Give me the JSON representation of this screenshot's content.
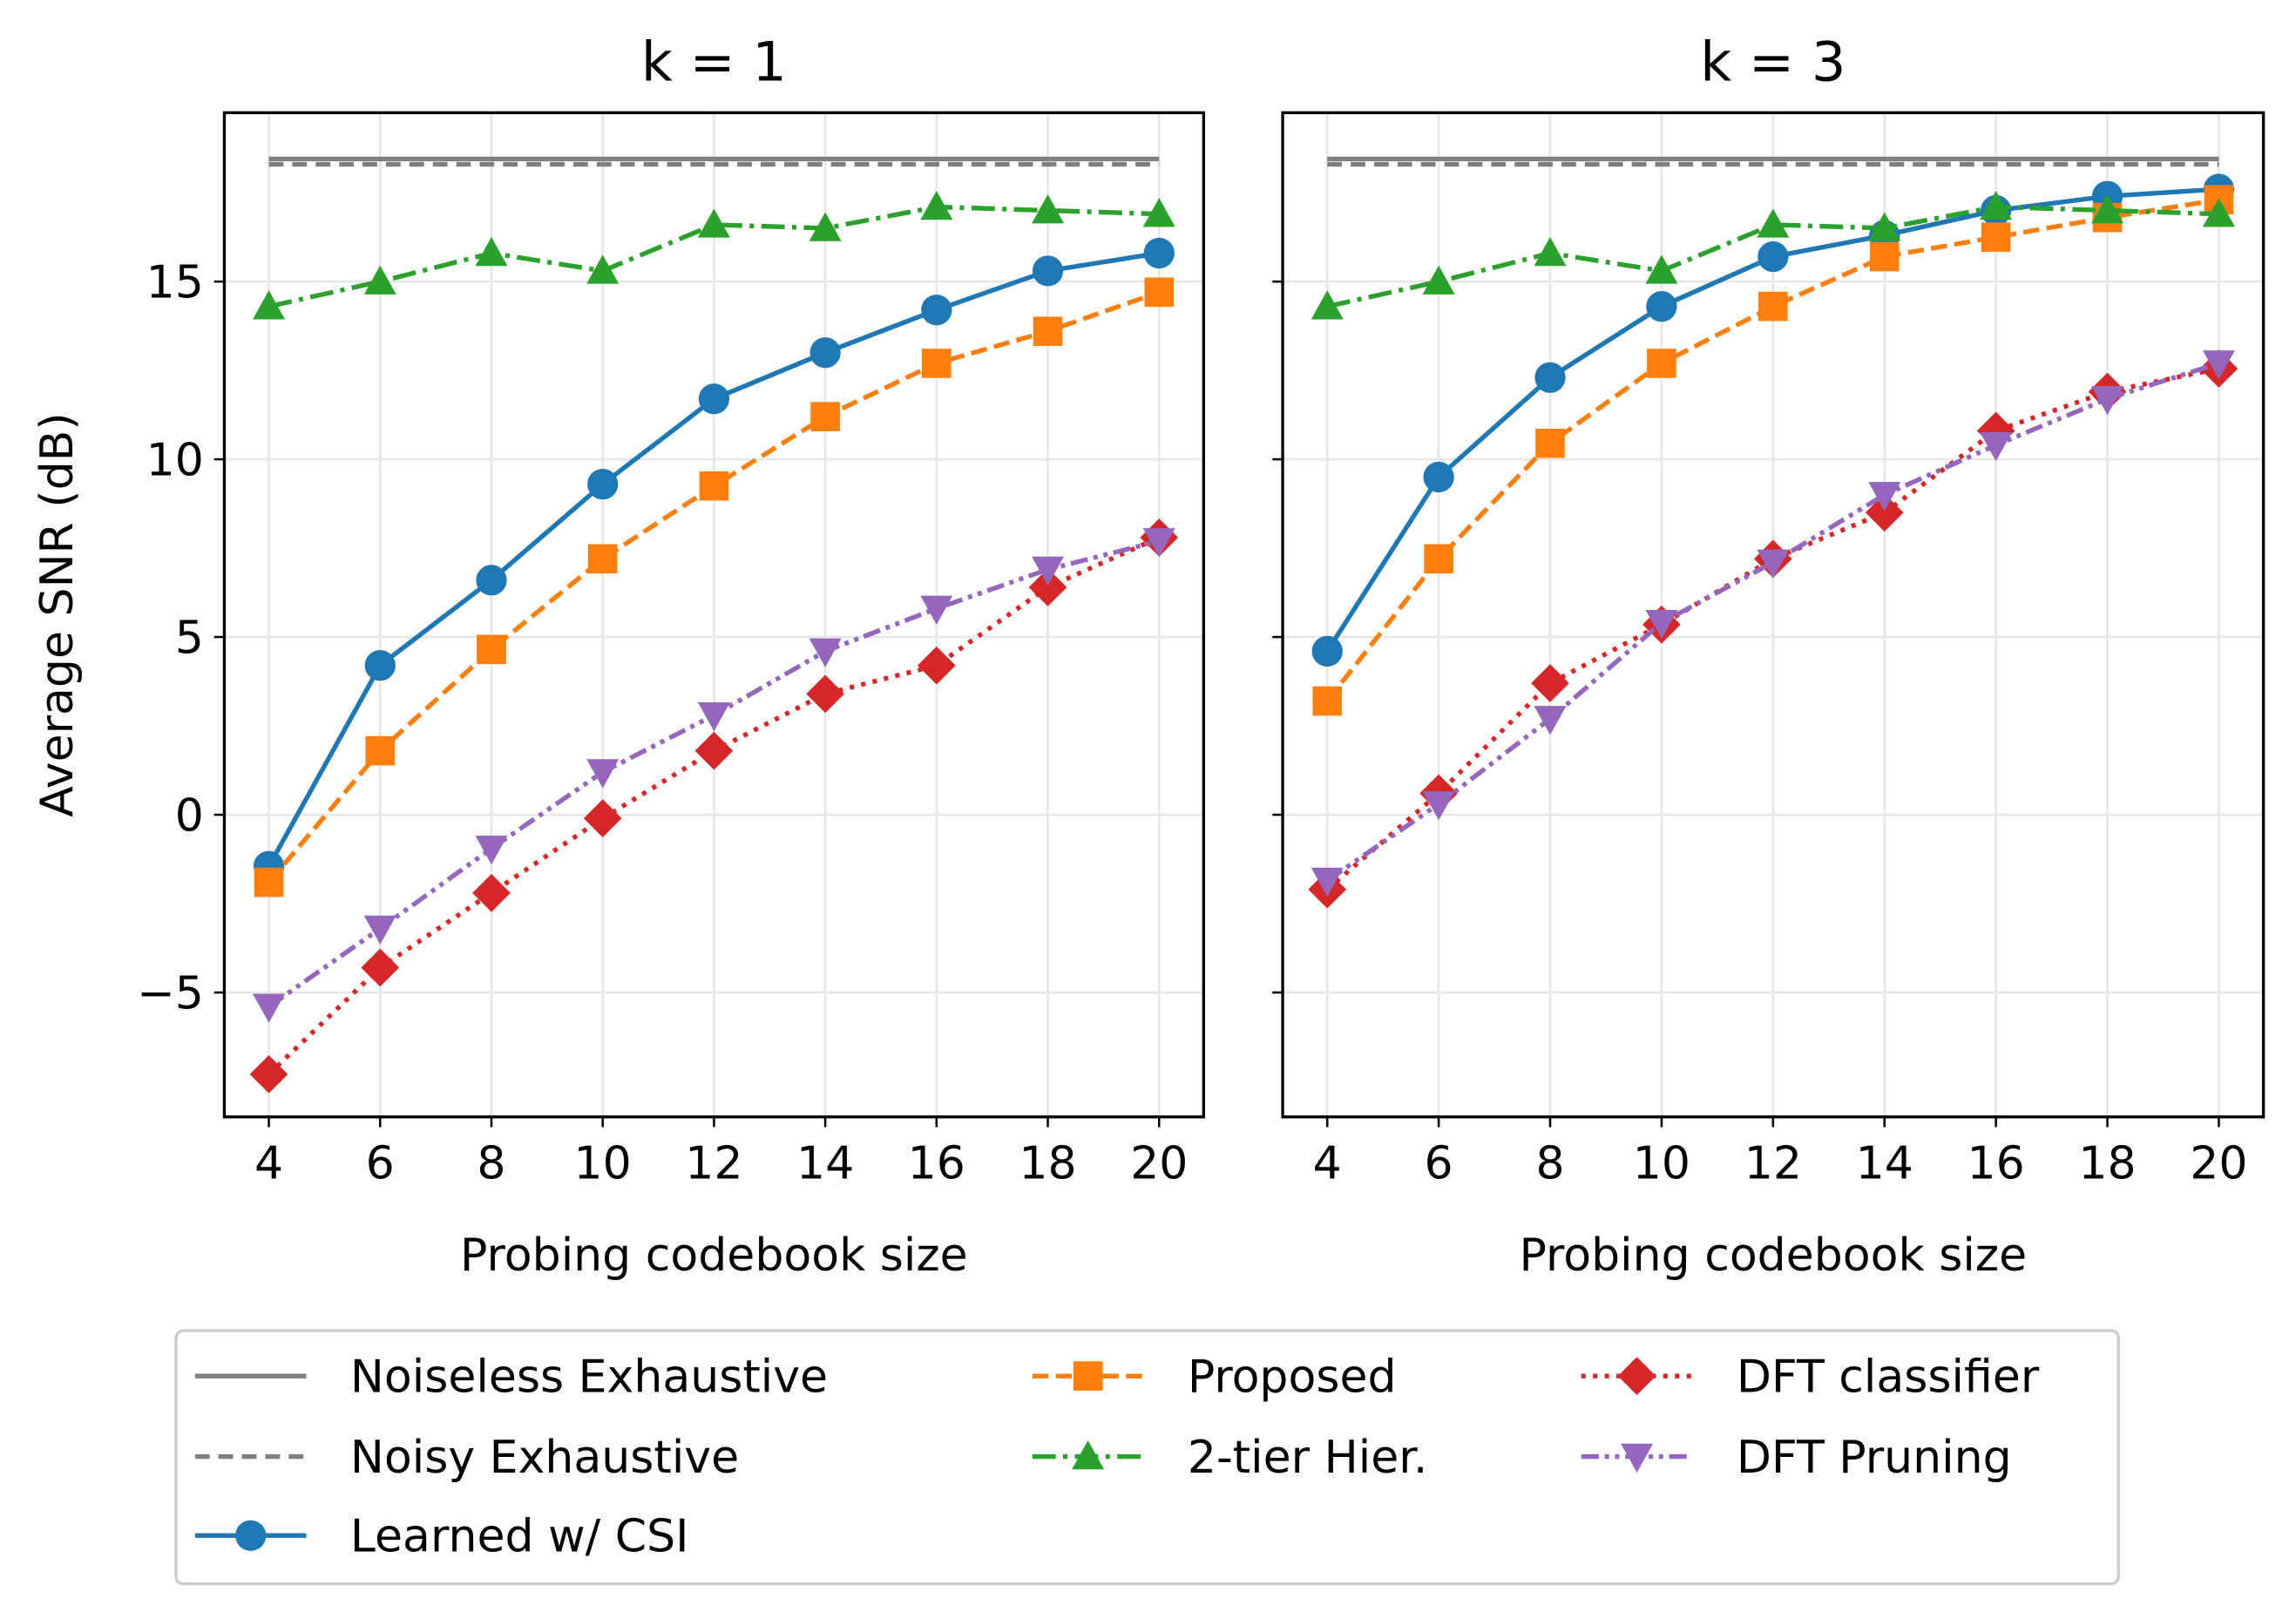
{
  "chart_data": [
    {
      "type": "line",
      "title": "k = 1",
      "xlabel": "Probing codebook size",
      "ylabel": "Average SNR (dB)",
      "xlim": [
        3.2,
        20.8
      ],
      "ylim": [
        -8.5,
        19.75
      ],
      "xticks": [
        4,
        6,
        8,
        10,
        12,
        14,
        16,
        18,
        20
      ],
      "yticks": [
        -5,
        0,
        5,
        10,
        15
      ],
      "grid": true,
      "x": [
        4,
        6,
        8,
        10,
        12,
        14,
        16,
        18,
        20
      ],
      "series": [
        {
          "name": "Noiseless Exhaustive",
          "color": "#7f7f7f",
          "values": [
            18.45,
            18.45,
            18.45,
            18.45,
            18.45,
            18.45,
            18.45,
            18.45,
            18.45
          ]
        },
        {
          "name": "Noisy Exhaustive",
          "color": "#7f7f7f",
          "values": [
            18.3,
            18.3,
            18.3,
            18.3,
            18.3,
            18.3,
            18.3,
            18.3,
            18.3
          ]
        },
        {
          "name": "Learned w/ CSI",
          "color": "#1f77b4",
          "values": [
            -1.45,
            4.2,
            6.6,
            9.3,
            11.7,
            13.0,
            14.2,
            15.3,
            15.8
          ]
        },
        {
          "name": "Proposed",
          "color": "#ff7f0e",
          "values": [
            -1.9,
            1.8,
            4.65,
            7.2,
            9.25,
            11.2,
            12.7,
            13.6,
            14.7
          ]
        },
        {
          "name": "2-tier Hier.",
          "color": "#2ca02c",
          "values": [
            14.3,
            15.0,
            15.8,
            15.3,
            16.6,
            16.5,
            17.1,
            17.0,
            16.9
          ]
        },
        {
          "name": "DFT classifier",
          "color": "#d62728",
          "values": [
            -7.3,
            -4.3,
            -2.2,
            -0.1,
            1.8,
            3.4,
            4.2,
            6.4,
            7.8
          ]
        },
        {
          "name": "DFT Pruning",
          "color": "#9467bd",
          "values": [
            -5.4,
            -3.2,
            -0.95,
            1.2,
            2.8,
            4.6,
            5.8,
            6.9,
            7.7
          ]
        }
      ]
    },
    {
      "type": "line",
      "title": "k = 3",
      "xlabel": "Probing codebook size",
      "ylabel": "",
      "xlim": [
        3.2,
        20.8
      ],
      "ylim": [
        -8.5,
        19.75
      ],
      "xticks": [
        4,
        6,
        8,
        10,
        12,
        14,
        16,
        18,
        20
      ],
      "yticks": [
        -5,
        0,
        5,
        10,
        15
      ],
      "grid": true,
      "x": [
        4,
        6,
        8,
        10,
        12,
        14,
        16,
        18,
        20
      ],
      "series": [
        {
          "name": "Noiseless Exhaustive",
          "color": "#7f7f7f",
          "values": [
            18.45,
            18.45,
            18.45,
            18.45,
            18.45,
            18.45,
            18.45,
            18.45,
            18.45
          ]
        },
        {
          "name": "Noisy Exhaustive",
          "color": "#7f7f7f",
          "values": [
            18.3,
            18.3,
            18.3,
            18.3,
            18.3,
            18.3,
            18.3,
            18.3,
            18.3
          ]
        },
        {
          "name": "Learned w/ CSI",
          "color": "#1f77b4",
          "values": [
            4.6,
            9.5,
            12.3,
            14.3,
            15.7,
            16.3,
            17.0,
            17.4,
            17.6
          ]
        },
        {
          "name": "Proposed",
          "color": "#ff7f0e",
          "values": [
            3.2,
            7.2,
            10.45,
            12.7,
            14.3,
            15.7,
            16.25,
            16.8,
            17.3
          ]
        },
        {
          "name": "2-tier Hier.",
          "color": "#2ca02c",
          "values": [
            14.3,
            15.0,
            15.8,
            15.3,
            16.6,
            16.5,
            17.1,
            17.0,
            16.9
          ]
        },
        {
          "name": "DFT classifier",
          "color": "#d62728",
          "values": [
            -2.1,
            0.6,
            3.7,
            5.35,
            7.2,
            8.5,
            10.8,
            11.9,
            12.55
          ]
        },
        {
          "name": "DFT Pruning",
          "color": "#9467bd",
          "values": [
            -1.85,
            0.3,
            2.7,
            5.4,
            7.1,
            9.0,
            10.4,
            11.7,
            12.7
          ]
        }
      ]
    }
  ],
  "legend": {
    "placement": "bottom",
    "entries": [
      "Noiseless Exhaustive",
      "Noisy Exhaustive",
      "Learned w/ CSI",
      "Proposed",
      "2-tier Hier.",
      "DFT classifier",
      "DFT Pruning"
    ]
  }
}
